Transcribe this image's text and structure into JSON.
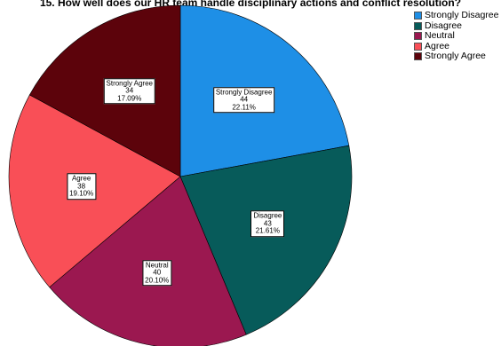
{
  "chart_data": {
    "type": "pie",
    "title": "15. How well does our HR team handle disciplinary actions and conflict resolution?",
    "slices": [
      {
        "label": "Strongly Disagree",
        "count": 44,
        "percent": "22.11%",
        "color": "#1e8fe6"
      },
      {
        "label": "Disagree",
        "count": 43,
        "percent": "21.61%",
        "color": "#075b5a"
      },
      {
        "label": "Neutral",
        "count": 40,
        "percent": "20.10%",
        "color": "#9b1850"
      },
      {
        "label": "Agree",
        "count": 38,
        "percent": "19.10%",
        "color": "#f94f57"
      },
      {
        "label": "Strongly Agree",
        "count": 34,
        "percent": "17.09%",
        "color": "#5c030b"
      }
    ],
    "legend": {
      "placement": "top-right",
      "entries": [
        "Strongly Disagree",
        "Disagree",
        "Neutral",
        "Agree",
        "Strongly Agree"
      ]
    }
  }
}
